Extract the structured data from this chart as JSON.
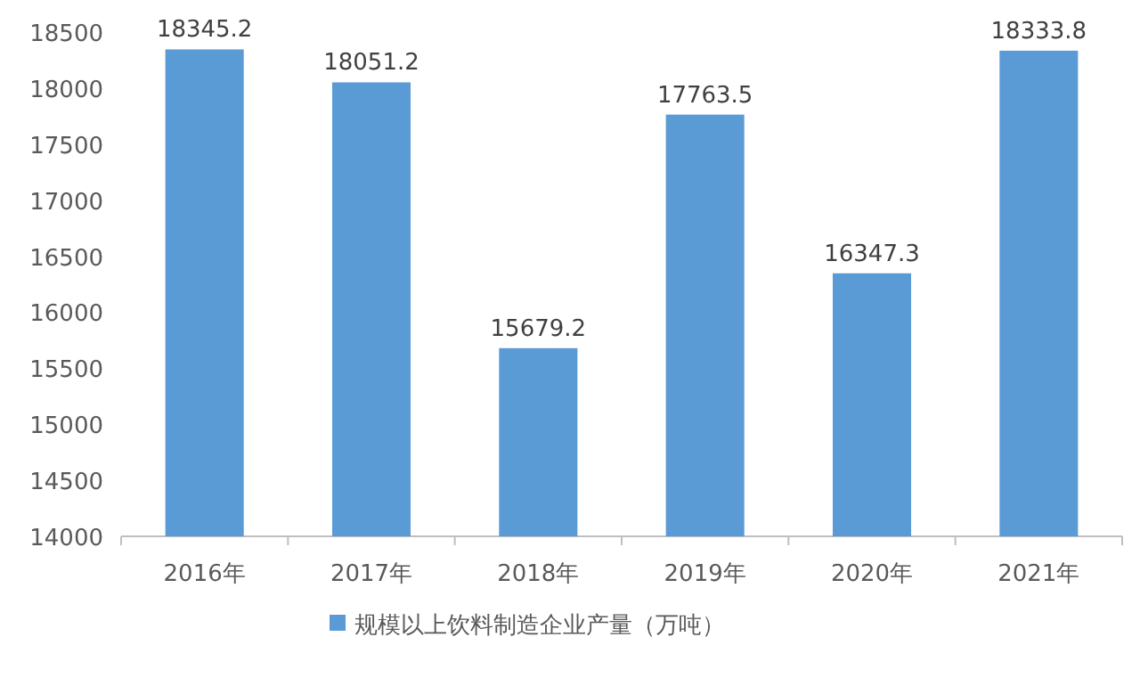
{
  "chart_data": {
    "type": "bar",
    "categories": [
      "2016年",
      "2017年",
      "2018年",
      "2019年",
      "2020年",
      "2021年"
    ],
    "series": [
      {
        "name": "规模以上饮料制造企业产量（万吨）",
        "color": "#5b9bd5",
        "values": [
          18345.2,
          18051.2,
          15679.2,
          17763.5,
          16347.3,
          18333.8
        ]
      }
    ],
    "ylim": [
      14000,
      18500
    ],
    "yticks": [
      14000,
      14500,
      15000,
      15500,
      16000,
      16500,
      17000,
      17500,
      18000,
      18500
    ],
    "data_labels": true,
    "grid": false,
    "legend": "bottom"
  }
}
